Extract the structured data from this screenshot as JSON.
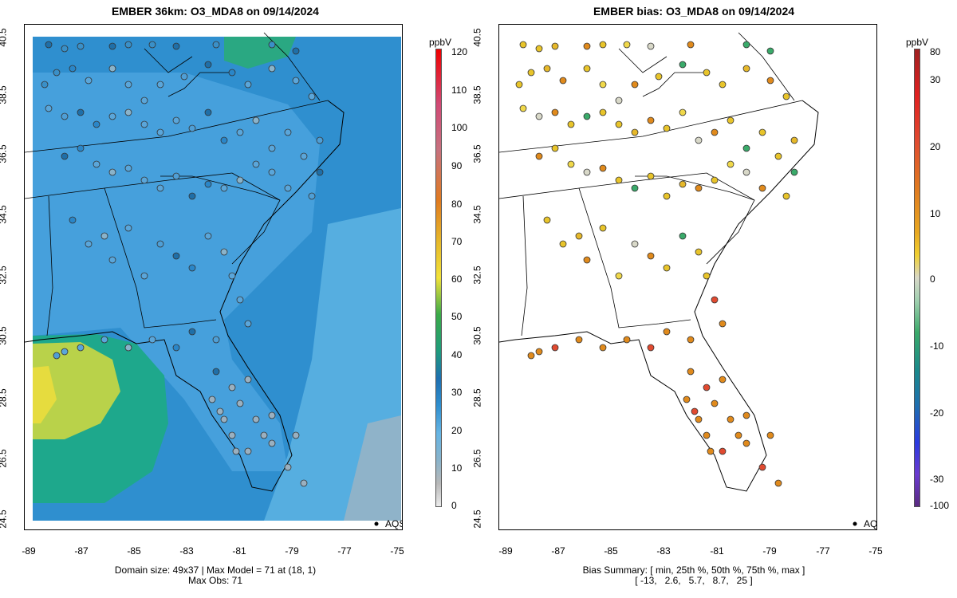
{
  "left": {
    "title": "EMBER 36km: O3_MDA8 on 09/14/2024",
    "y_ticks": [
      "40.5",
      "38.5",
      "36.5",
      "34.5",
      "32.5",
      "30.5",
      "28.5",
      "26.5",
      "24.5"
    ],
    "x_ticks": [
      "-89",
      "-87",
      "-85",
      "-83",
      "-81",
      "-79",
      "-77",
      "-75"
    ],
    "colorbar_unit": "ppbV",
    "colorbar_labels": [
      "120",
      "110",
      "100",
      "90",
      "80",
      "70",
      "60",
      "50",
      "40",
      "30",
      "20",
      "10",
      "0"
    ],
    "legend": "AQS",
    "footer_line1": "Domain size: 49x37 | Max Model = 71 at (18, 1)",
    "footer_line2": "Max Obs: 71"
  },
  "right": {
    "title": "EMBER bias: O3_MDA8 on 09/14/2024",
    "y_ticks": [
      "40.5",
      "38.5",
      "36.5",
      "34.5",
      "32.5",
      "30.5",
      "28.5",
      "26.5",
      "24.5"
    ],
    "x_ticks": [
      "-89",
      "-87",
      "-85",
      "-83",
      "-81",
      "-79",
      "-77",
      "-75"
    ],
    "colorbar_unit": "ppbV",
    "colorbar_labels": [
      "80",
      "30",
      "20",
      "10",
      "0",
      "-10",
      "-20",
      "-30",
      "-100"
    ],
    "legend": "AQS",
    "footer_line1": "Bias Summary: [ min, 25th %, 50th %, 75th %, max ]",
    "footer_line2": "[ -13,   2.6,   5.7,   8.7,   25 ]"
  },
  "colors": {
    "ocean_blue": "#2f8fcf",
    "land_blue": "#4aa3de",
    "gulf_green": "#1ea88c",
    "gulf_yellow": "#d8d64a",
    "station_blue": "#5aa6da",
    "bias_yellow": "#e8c42a",
    "bias_orange": "#e08a1c",
    "bias_green": "#3aaa6a"
  }
}
